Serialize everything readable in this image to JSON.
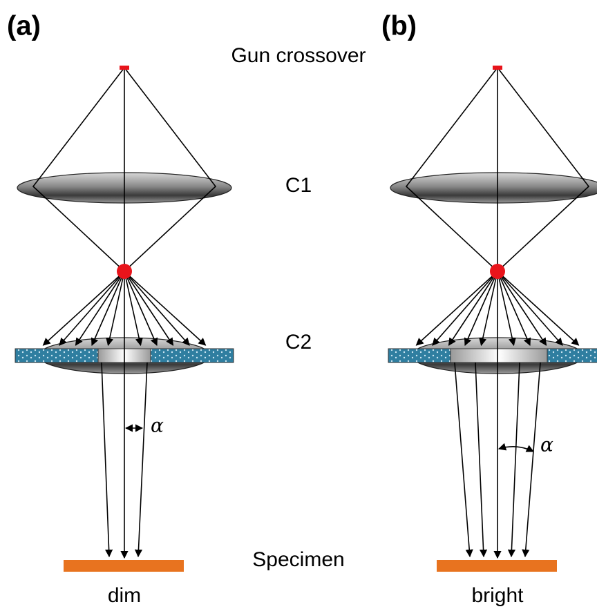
{
  "panels": [
    {
      "label": "(a)",
      "alpha": "α",
      "caption": "dim"
    },
    {
      "label": "(b)",
      "alpha": "α",
      "caption": "bright"
    }
  ],
  "labels": {
    "gun": "Gun crossover",
    "c1": "C1",
    "c2": "C2",
    "specimen": "Specimen"
  }
}
